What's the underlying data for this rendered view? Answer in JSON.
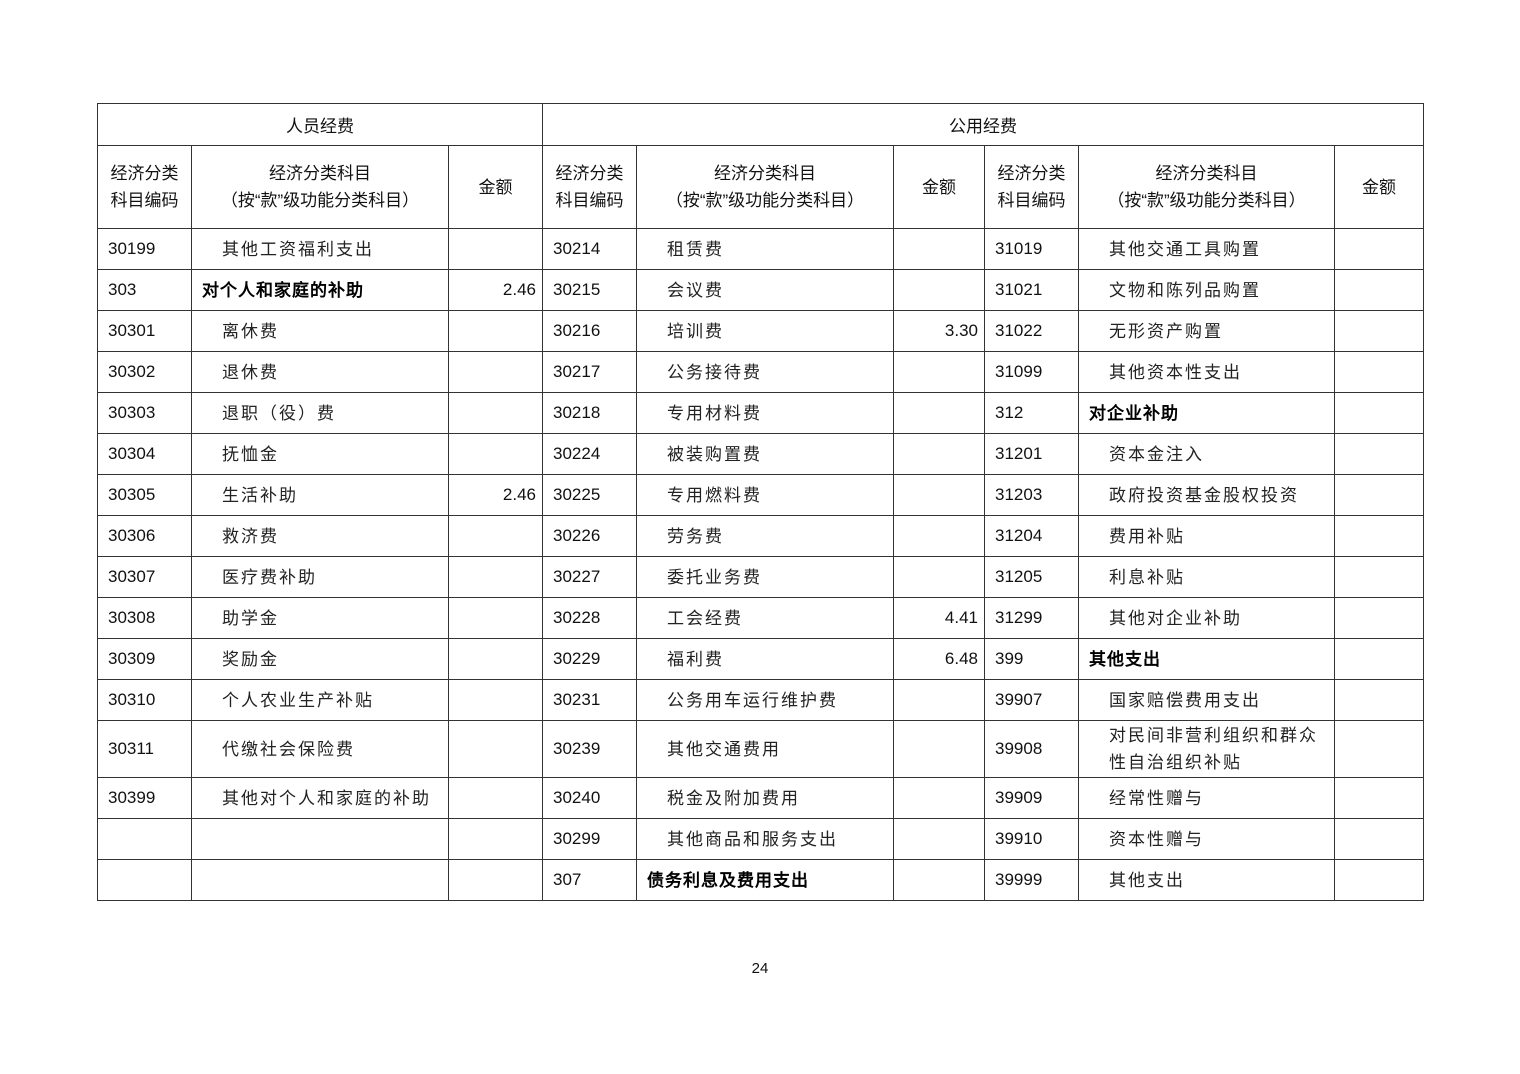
{
  "groups": {
    "personnel": "人员经费",
    "public": "公用经费"
  },
  "headers": {
    "code": "经济分类\n科目编码",
    "subject_line1": "经济分类科目",
    "subject_line2": "（按“款”级功能分类科目）",
    "amount": "金额"
  },
  "rows": [
    [
      [
        "30199",
        "其他工资福利支出",
        ""
      ],
      [
        "30214",
        "租赁费",
        ""
      ],
      [
        "31019",
        "其他交通工具购置",
        ""
      ]
    ],
    [
      [
        "303",
        "对个人和家庭的补助",
        "2.46",
        true
      ],
      [
        "30215",
        "会议费",
        ""
      ],
      [
        "31021",
        "文物和陈列品购置",
        ""
      ]
    ],
    [
      [
        "30301",
        "离休费",
        ""
      ],
      [
        "30216",
        "培训费",
        "3.30"
      ],
      [
        "31022",
        "无形资产购置",
        ""
      ]
    ],
    [
      [
        "30302",
        "退休费",
        ""
      ],
      [
        "30217",
        "公务接待费",
        ""
      ],
      [
        "31099",
        "其他资本性支出",
        ""
      ]
    ],
    [
      [
        "30303",
        "退职（役）费",
        ""
      ],
      [
        "30218",
        "专用材料费",
        ""
      ],
      [
        "312",
        "对企业补助",
        "",
        true
      ]
    ],
    [
      [
        "30304",
        "抚恤金",
        ""
      ],
      [
        "30224",
        "被装购置费",
        ""
      ],
      [
        "31201",
        "资本金注入",
        ""
      ]
    ],
    [
      [
        "30305",
        "生活补助",
        "2.46"
      ],
      [
        "30225",
        "专用燃料费",
        ""
      ],
      [
        "31203",
        "政府投资基金股权投资",
        ""
      ]
    ],
    [
      [
        "30306",
        "救济费",
        ""
      ],
      [
        "30226",
        "劳务费",
        ""
      ],
      [
        "31204",
        "费用补贴",
        ""
      ]
    ],
    [
      [
        "30307",
        "医疗费补助",
        ""
      ],
      [
        "30227",
        "委托业务费",
        ""
      ],
      [
        "31205",
        "利息补贴",
        ""
      ]
    ],
    [
      [
        "30308",
        "助学金",
        ""
      ],
      [
        "30228",
        "工会经费",
        "4.41"
      ],
      [
        "31299",
        "其他对企业补助",
        ""
      ]
    ],
    [
      [
        "30309",
        "奖励金",
        ""
      ],
      [
        "30229",
        "福利费",
        "6.48"
      ],
      [
        "399",
        "其他支出",
        "",
        true
      ]
    ],
    [
      [
        "30310",
        "个人农业生产补贴",
        ""
      ],
      [
        "30231",
        "公务用车运行维护费",
        ""
      ],
      [
        "39907",
        "国家赔偿费用支出",
        ""
      ]
    ],
    [
      [
        "30311",
        "代缴社会保险费",
        ""
      ],
      [
        "30239",
        "其他交通费用",
        ""
      ],
      [
        "39908",
        "对民间非营利组织和群众性自治组织补贴",
        ""
      ]
    ],
    [
      [
        "30399",
        "其他对个人和家庭的补助",
        ""
      ],
      [
        "30240",
        "税金及附加费用",
        ""
      ],
      [
        "39909",
        "经常性赠与",
        ""
      ]
    ],
    [
      [
        "",
        "",
        ""
      ],
      [
        "30299",
        "其他商品和服务支出",
        ""
      ],
      [
        "39910",
        "资本性赠与",
        ""
      ]
    ],
    [
      [
        "",
        "",
        ""
      ],
      [
        "307",
        "债务利息及费用支出",
        "",
        true
      ],
      [
        "39999",
        "其他支出",
        ""
      ]
    ]
  ],
  "page_number": "24"
}
